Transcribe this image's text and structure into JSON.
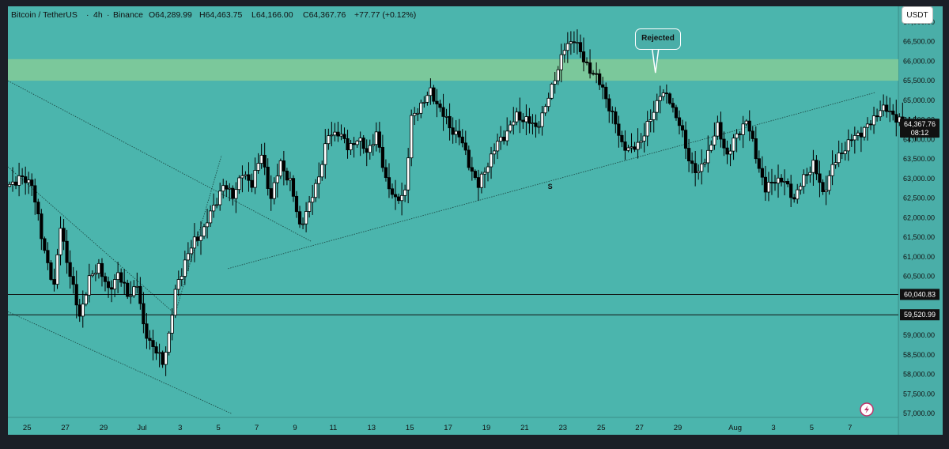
{
  "header": {
    "symbol": "Bitcoin / TetherUS",
    "interval": "4h",
    "exchange": "Binance",
    "open": "O64,289.99",
    "high": "H64,463.75",
    "low": "L64,166.00",
    "close": "C64,367.76",
    "change": "+77.77 (+0.12%)"
  },
  "currency_badge": "USDT",
  "colors": {
    "background": "#4bb5ad",
    "axis_background": "#4aaea8",
    "zone": "#7dc99a",
    "candle_up": "#ffffff",
    "candle_down": "#000000",
    "frame": "#1b1f27"
  },
  "chart_data": {
    "type": "candlestick",
    "instrument": "Bitcoin / TetherUS",
    "interval": "4h",
    "y_axis": {
      "range": [
        56900,
        67400
      ],
      "ticks": [
        67000,
        66500,
        66000,
        65500,
        65000,
        64500,
        64000,
        63500,
        63000,
        62500,
        62000,
        61500,
        61000,
        60500,
        60000,
        59500,
        59000,
        58500,
        58000,
        57500,
        57000
      ],
      "tick_labels": [
        "67,000.00",
        "66,500.00",
        "66,000.00",
        "65,500.00",
        "65,000.00",
        "64,500.00",
        "64,000.00",
        "63,500.00",
        "63,000.00",
        "62,500.00",
        "62,000.00",
        "61,500.00",
        "61,000.00",
        "60,500.00",
        "60,000.00",
        "59,500.00",
        "59,000.00",
        "58,500.00",
        "58,000.00",
        "57,500.00",
        "57,000.00"
      ]
    },
    "x_axis": {
      "labels": [
        "25",
        "27",
        "29",
        "Jul",
        "3",
        "5",
        "7",
        "9",
        "11",
        "13",
        "15",
        "17",
        "19",
        "21",
        "23",
        "25",
        "27",
        "29",
        "Aug",
        "3",
        "5",
        "7"
      ],
      "dates": [
        "2024-06-25",
        "2024-06-27",
        "2024-06-29",
        "2024-07-01",
        "2024-07-03",
        "2024-07-05",
        "2024-07-07",
        "2024-07-09",
        "2024-07-11",
        "2024-07-13",
        "2024-07-15",
        "2024-07-17",
        "2024-07-19",
        "2024-07-21",
        "2024-07-23",
        "2024-07-25",
        "2024-07-27",
        "2024-07-29",
        "2024-08-01",
        "2024-08-03",
        "2024-08-05",
        "2024-08-07"
      ]
    },
    "price_path": [
      [
        "2024-06-24T00:00",
        62800
      ],
      [
        "2024-06-24T16:00",
        63000
      ],
      [
        "2024-06-25T08:00",
        62900
      ],
      [
        "2024-06-25T20:00",
        61500
      ],
      [
        "2024-06-26T12:00",
        60200
      ],
      [
        "2024-06-26T20:00",
        61800
      ],
      [
        "2024-06-27T08:00",
        60500
      ],
      [
        "2024-06-27T20:00",
        59500
      ],
      [
        "2024-06-28T08:00",
        60400
      ],
      [
        "2024-06-28T20:00",
        60800
      ],
      [
        "2024-06-29T08:00",
        60100
      ],
      [
        "2024-06-29T20:00",
        60600
      ],
      [
        "2024-06-30T08:00",
        60000
      ],
      [
        "2024-06-30T20:00",
        60300
      ],
      [
        "2024-07-01T04:00",
        59200
      ],
      [
        "2024-07-01T16:00",
        58700
      ],
      [
        "2024-07-02T04:00",
        58300
      ],
      [
        "2024-07-02T12:00",
        59000
      ],
      [
        "2024-07-02T20:00",
        60100
      ],
      [
        "2024-07-03T08:00",
        60900
      ],
      [
        "2024-07-03T20:00",
        61400
      ],
      [
        "2024-07-04T08:00",
        61700
      ],
      [
        "2024-07-04T20:00",
        62300
      ],
      [
        "2024-07-05T08:00",
        62800
      ],
      [
        "2024-07-05T20:00",
        62600
      ],
      [
        "2024-07-06T08:00",
        63100
      ],
      [
        "2024-07-06T20:00",
        62900
      ],
      [
        "2024-07-07T08:00",
        63600
      ],
      [
        "2024-07-07T20:00",
        62500
      ],
      [
        "2024-07-08T08:00",
        63400
      ],
      [
        "2024-07-08T20:00",
        62900
      ],
      [
        "2024-07-09T08:00",
        61800
      ],
      [
        "2024-07-09T20:00",
        62300
      ],
      [
        "2024-07-10T08:00",
        63100
      ],
      [
        "2024-07-10T20:00",
        64100
      ],
      [
        "2024-07-11T08:00",
        64200
      ],
      [
        "2024-07-11T20:00",
        63800
      ],
      [
        "2024-07-12T08:00",
        64000
      ],
      [
        "2024-07-12T20:00",
        63700
      ],
      [
        "2024-07-13T08:00",
        64100
      ],
      [
        "2024-07-13T20:00",
        63000
      ],
      [
        "2024-07-14T08:00",
        62400
      ],
      [
        "2024-07-14T20:00",
        62700
      ],
      [
        "2024-07-15T04:00",
        64500
      ],
      [
        "2024-07-15T16:00",
        64900
      ],
      [
        "2024-07-16T04:00",
        65200
      ],
      [
        "2024-07-16T16:00",
        64800
      ],
      [
        "2024-07-17T04:00",
        64300
      ],
      [
        "2024-07-17T16:00",
        64100
      ],
      [
        "2024-07-18T04:00",
        63400
      ],
      [
        "2024-07-18T16:00",
        62800
      ],
      [
        "2024-07-19T04:00",
        63400
      ],
      [
        "2024-07-19T16:00",
        63900
      ],
      [
        "2024-07-20T04:00",
        64200
      ],
      [
        "2024-07-20T16:00",
        64600
      ],
      [
        "2024-07-21T04:00",
        64500
      ],
      [
        "2024-07-21T16:00",
        64300
      ],
      [
        "2024-07-22T04:00",
        64800
      ],
      [
        "2024-07-22T16:00",
        65600
      ],
      [
        "2024-07-23T04:00",
        66300
      ],
      [
        "2024-07-23T16:00",
        66600
      ],
      [
        "2024-07-24T04:00",
        66000
      ],
      [
        "2024-07-24T16:00",
        65700
      ],
      [
        "2024-07-25T04:00",
        65300
      ],
      [
        "2024-07-25T16:00",
        64600
      ],
      [
        "2024-07-26T04:00",
        63900
      ],
      [
        "2024-07-26T16:00",
        63700
      ],
      [
        "2024-07-27T04:00",
        64000
      ],
      [
        "2024-07-27T16:00",
        64500
      ],
      [
        "2024-07-28T04:00",
        65200
      ],
      [
        "2024-07-28T16:00",
        65000
      ],
      [
        "2024-07-29T04:00",
        64400
      ],
      [
        "2024-07-29T16:00",
        63500
      ],
      [
        "2024-07-30T04:00",
        63100
      ],
      [
        "2024-07-30T16:00",
        63700
      ],
      [
        "2024-07-31T04:00",
        64300
      ],
      [
        "2024-07-31T16:00",
        63600
      ],
      [
        "2024-08-01T04:00",
        64100
      ],
      [
        "2024-08-01T16:00",
        64500
      ],
      [
        "2024-08-02T04:00",
        63600
      ],
      [
        "2024-08-02T16:00",
        62700
      ],
      [
        "2024-08-03T04:00",
        63000
      ],
      [
        "2024-08-03T16:00",
        62900
      ],
      [
        "2024-08-04T04:00",
        62500
      ],
      [
        "2024-08-04T16:00",
        63000
      ],
      [
        "2024-08-05T04:00",
        63400
      ],
      [
        "2024-08-05T16:00",
        62600
      ],
      [
        "2024-08-06T04:00",
        63300
      ],
      [
        "2024-08-06T16:00",
        63700
      ],
      [
        "2024-08-07T04:00",
        64000
      ],
      [
        "2024-08-07T16:00",
        64200
      ],
      [
        "2024-08-08T04:00",
        64400
      ],
      [
        "2024-08-08T16:00",
        64800
      ],
      [
        "2024-08-09T04:00",
        64700
      ],
      [
        "2024-08-09T16:00",
        64500
      ],
      [
        "2024-08-10T04:00",
        64200
      ],
      [
        "2024-08-10T12:00",
        64367.76
      ]
    ],
    "last_price": 64367.76,
    "last_price_label": "64,367.76",
    "countdown": "08:12",
    "resistance_zone": [
      65500,
      66050
    ],
    "levels": [
      {
        "price": 60040.83,
        "label": "60,040.83"
      },
      {
        "price": 59520.99,
        "label": "59,520.99"
      }
    ],
    "trendlines": [
      {
        "style": "dotted",
        "from": [
          "2024-06-24T00:00",
          65500
        ],
        "to": [
          "2024-07-09T20:00",
          61400
        ]
      },
      {
        "style": "dotted",
        "from": [
          "2024-06-24T00:00",
          59600
        ],
        "to": [
          "2024-07-05T16:00",
          57000
        ]
      },
      {
        "style": "dotted",
        "from": [
          "2024-06-24T00:00",
          63300
        ],
        "to": [
          "2024-07-02T20:00",
          59500
        ]
      },
      {
        "style": "dotted",
        "from": [
          "2024-07-02T20:00",
          59700
        ],
        "to": [
          "2024-07-05T04:00",
          63600
        ]
      },
      {
        "style": "dotted",
        "from": [
          "2024-07-05T12:00",
          60700
        ],
        "to": [
          "2024-08-08T08:00",
          65200
        ]
      }
    ],
    "annotations": [
      {
        "text": "Rejected",
        "date": "2024-07-27T20:00",
        "price": 65700
      },
      {
        "text": "S",
        "date": "2024-07-22T08:00",
        "price": 62800
      }
    ]
  }
}
